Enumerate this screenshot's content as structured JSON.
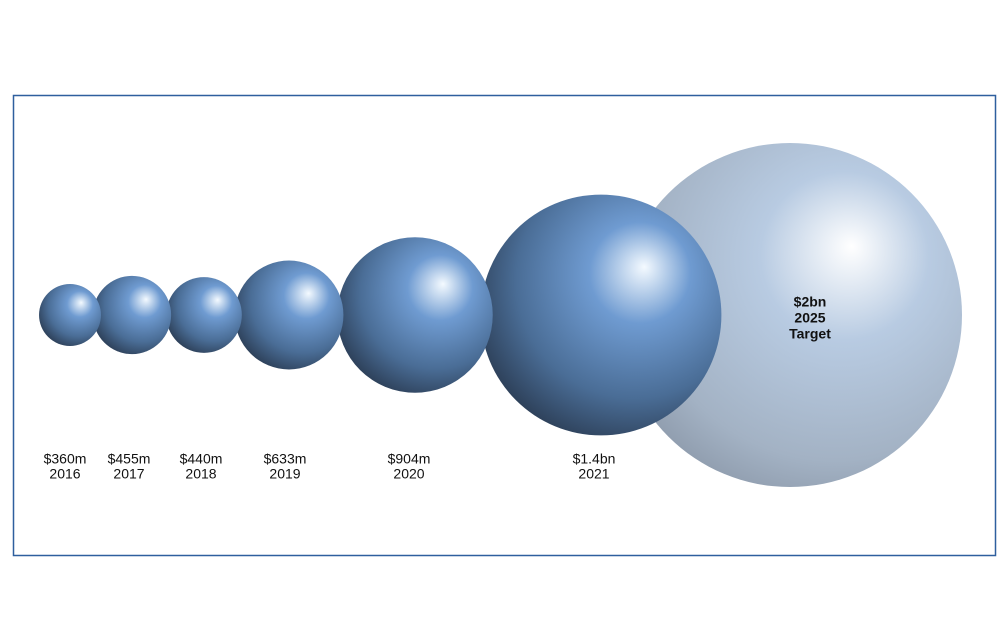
{
  "chart_data": {
    "type": "bubble",
    "categories": [
      "2016",
      "2017",
      "2018",
      "2019",
      "2020",
      "2021",
      "2025"
    ],
    "values": [
      360,
      455,
      440,
      633,
      904,
      1400,
      2000
    ],
    "value_labels": [
      "$360m",
      "$455m",
      "$440m",
      "$633m",
      "$904m",
      "$1.4bn",
      "$2bn"
    ],
    "target_label": "Target",
    "color": "#6f9bd1",
    "target_color": "#b8cbe2"
  }
}
